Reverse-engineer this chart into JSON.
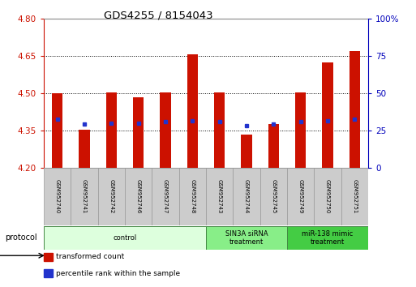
{
  "title": "GDS4255 / 8154043",
  "samples": [
    "GSM952740",
    "GSM952741",
    "GSM952742",
    "GSM952746",
    "GSM952747",
    "GSM952748",
    "GSM952743",
    "GSM952744",
    "GSM952745",
    "GSM952749",
    "GSM952750",
    "GSM952751"
  ],
  "transformed_counts": [
    4.5,
    4.355,
    4.505,
    4.485,
    4.505,
    4.655,
    4.505,
    4.335,
    4.375,
    4.505,
    4.625,
    4.67
  ],
  "percentile_ranks": [
    4.395,
    4.375,
    4.38,
    4.38,
    4.385,
    4.39,
    4.385,
    4.37,
    4.375,
    4.385,
    4.39,
    4.395
  ],
  "ylim_left": [
    4.2,
    4.8
  ],
  "yticks_left": [
    4.2,
    4.35,
    4.5,
    4.65,
    4.8
  ],
  "yticks_right": [
    0,
    25,
    50,
    75,
    100
  ],
  "ylim_right": [
    0,
    100
  ],
  "bar_color": "#cc1100",
  "dot_color": "#2233cc",
  "bar_bottom": 4.2,
  "groups": [
    {
      "label": "control",
      "start": 0,
      "end": 6,
      "color": "#ddffdd"
    },
    {
      "label": "SIN3A siRNA\ntreatment",
      "start": 6,
      "end": 9,
      "color": "#88ee88"
    },
    {
      "label": "miR-138 mimic\ntreatment",
      "start": 9,
      "end": 12,
      "color": "#44cc44"
    }
  ],
  "protocol_label": "protocol",
  "legend_items": [
    {
      "label": "transformed count",
      "color": "#cc1100"
    },
    {
      "label": "percentile rank within the sample",
      "color": "#2233cc"
    }
  ],
  "background_color": "#ffffff",
  "left_axis_color": "#cc1100",
  "right_axis_color": "#0000bb",
  "bar_width": 0.4,
  "sample_box_color": "#cccccc",
  "sample_box_edge": "#999999"
}
